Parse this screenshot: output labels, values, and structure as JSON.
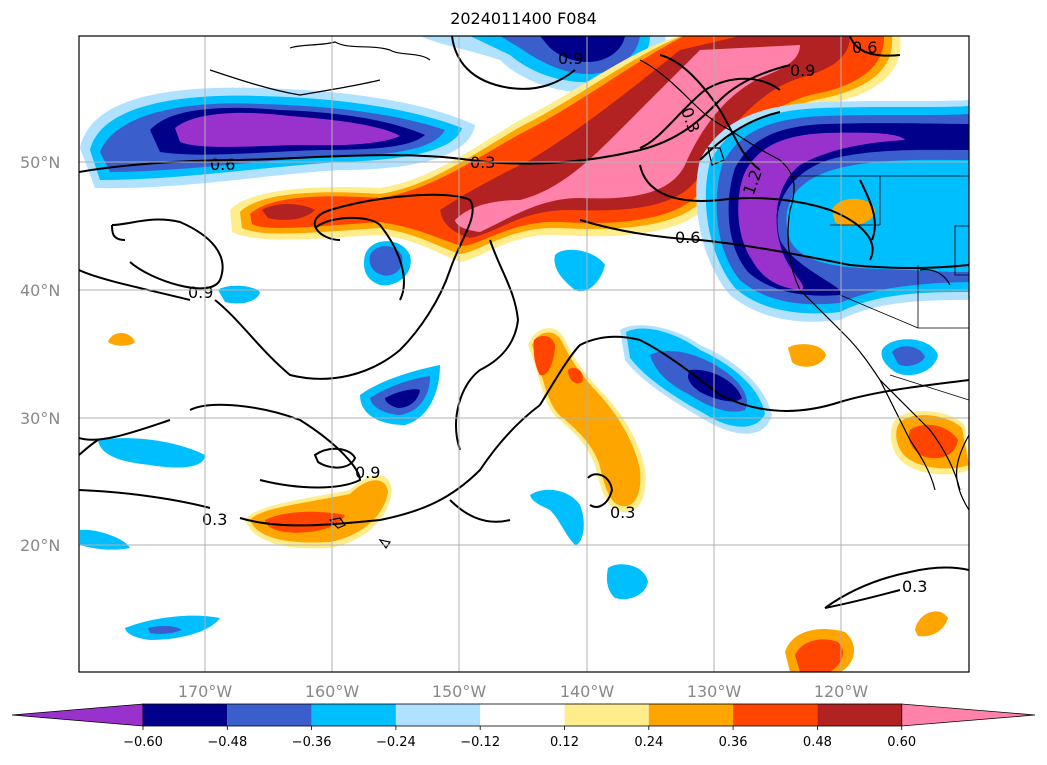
{
  "title": "2024011400 F084",
  "lat_labels": [
    "50°N",
    "40°N",
    "30°N",
    "20°N"
  ],
  "lon_labels": [
    "170°W",
    "160°W",
    "150°W",
    "140°W",
    "130°W",
    "120°W"
  ],
  "colorbar": {
    "ticks": [
      "−0.60",
      "−0.48",
      "−0.36",
      "−0.24",
      "−0.12",
      "0.12",
      "0.24",
      "0.36",
      "0.48",
      "0.60"
    ],
    "colors": [
      "#9932cc",
      "#00008b",
      "#3a5fcd",
      "#00bfff",
      "#b0e2ff",
      "#ffffff",
      "#ffec8b",
      "#ffa500",
      "#ff4500",
      "#b22222",
      "#ff82ab"
    ]
  },
  "contour_labels": [
    "0.6",
    "0.3",
    "0.9",
    "0.6",
    "0.9",
    "0.6",
    "0.3",
    "0.9",
    "0.3",
    "0.3",
    "0.9",
    "0.3",
    "1.2"
  ]
}
